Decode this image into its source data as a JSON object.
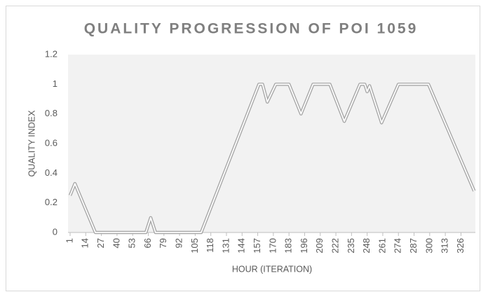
{
  "chart_data": {
    "type": "line",
    "title": "QUALITY PROGRESSION OF POI 1059",
    "x_label": "HOUR (ITERATION)",
    "y_label": "QUALITY INDEX",
    "x": [
      1,
      5,
      22,
      64,
      68,
      72,
      110,
      158,
      161,
      165,
      172,
      183,
      193,
      203,
      217,
      229,
      242,
      246,
      248,
      250,
      260,
      274,
      299,
      337
    ],
    "series": [
      {
        "name": "Quality Index",
        "color": "#a6a6a6",
        "values": [
          0.25,
          0.33,
          0,
          0,
          0.1,
          0,
          0,
          1,
          1,
          0.88,
          1,
          1,
          0.8,
          1,
          1,
          0.75,
          1,
          1,
          0.95,
          0.99,
          0.74,
          1,
          1,
          0.28
        ]
      }
    ],
    "xlim": [
      1,
      338
    ],
    "xticks": [
      1,
      14,
      27,
      40,
      53,
      66,
      79,
      92,
      105,
      118,
      131,
      144,
      157,
      170,
      183,
      196,
      209,
      222,
      235,
      248,
      261,
      274,
      287,
      300,
      313,
      326
    ],
    "ylim": [
      0,
      1.2
    ],
    "yticks": [
      0,
      0.2,
      0.4,
      0.6,
      0.8,
      1,
      1.2
    ],
    "grid": false
  }
}
